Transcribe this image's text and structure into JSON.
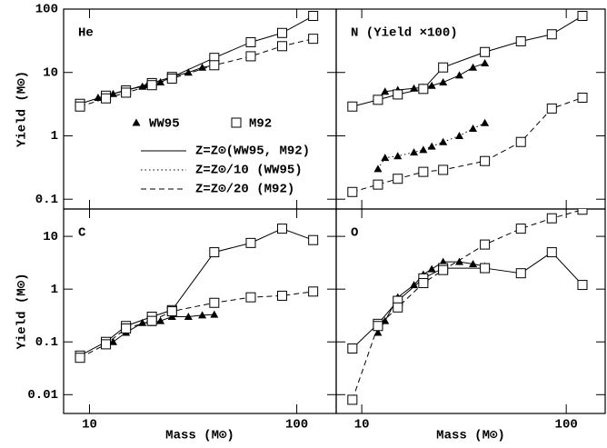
{
  "chart_data": [
    {
      "type": "line",
      "panel_label": "He",
      "y_label": "Yield (M⊙)",
      "log_x": true,
      "log_y": true,
      "xlim": [
        7.5,
        155
      ],
      "ylim": [
        0.07,
        100
      ],
      "xticks": [
        10,
        100
      ],
      "yticks": [
        0.1,
        1,
        10,
        100
      ],
      "xtick_labels": false,
      "ytick_labels": true,
      "legend": [
        {
          "label": "WW95",
          "marker": "triangle"
        },
        {
          "label": "M92",
          "marker": "square"
        },
        {
          "label": "Z=Z⊙(WW95, M92)",
          "dash": "solid"
        },
        {
          "label": "Z=Z⊙/10 (WW95)",
          "dash": "dotted"
        },
        {
          "label": "Z=Z⊙/20 (M92)",
          "dash": "dashed"
        }
      ],
      "series": [
        {
          "color": "#000000",
          "marker": "triangle",
          "dash": "solid",
          "x": [
            11,
            12,
            13,
            15,
            18,
            19,
            20,
            22,
            25,
            30,
            35,
            40
          ],
          "values": [
            4.0,
            4.2,
            4.6,
            5.3,
            6.0,
            6.3,
            6.7,
            7.0,
            8.5,
            10,
            12,
            13
          ]
        },
        {
          "color": "#000000",
          "marker": "square",
          "dash": "solid",
          "x": [
            9,
            12,
            15,
            20,
            25,
            40,
            60,
            85,
            120
          ],
          "values": [
            3.2,
            4.3,
            5.2,
            6.8,
            8.5,
            17,
            30,
            42,
            78
          ]
        },
        {
          "color": "#000000",
          "marker": "square",
          "dash": "dashed",
          "x": [
            9,
            12,
            15,
            20,
            25,
            40,
            60,
            85,
            120
          ],
          "values": [
            2.9,
            3.9,
            4.8,
            6.3,
            8,
            13,
            18,
            26,
            34
          ]
        }
      ]
    },
    {
      "type": "line",
      "panel_label": "N (Yield ×100)",
      "log_x": true,
      "log_y": true,
      "xlim": [
        7.5,
        155
      ],
      "ylim": [
        0.07,
        100
      ],
      "xticks": [
        10,
        100
      ],
      "yticks": [
        0.1,
        1,
        10,
        100
      ],
      "xtick_labels": false,
      "ytick_labels": false,
      "series": [
        {
          "color": "#000000",
          "marker": "triangle",
          "dash": "solid",
          "x": [
            12,
            13,
            15,
            18,
            20,
            22,
            25,
            30,
            35,
            40
          ],
          "values": [
            3.8,
            5,
            5.3,
            5.6,
            5.8,
            6.2,
            7,
            9,
            12,
            14
          ]
        },
        {
          "color": "#000000",
          "marker": "triangle",
          "dash": "dotted",
          "x": [
            12,
            13,
            15,
            18,
            20,
            22,
            25,
            30,
            35,
            40
          ],
          "values": [
            0.3,
            0.45,
            0.48,
            0.55,
            0.6,
            0.68,
            0.8,
            1.0,
            1.3,
            1.6
          ]
        },
        {
          "color": "#000000",
          "marker": "square",
          "dash": "solid",
          "x": [
            9,
            12,
            15,
            20,
            25,
            40,
            60,
            85,
            120
          ],
          "values": [
            2.9,
            3.7,
            4.5,
            5.5,
            12,
            21,
            31,
            40,
            78
          ]
        },
        {
          "color": "#000000",
          "marker": "square",
          "dash": "dashed",
          "x": [
            9,
            12,
            15,
            20,
            25,
            40,
            60,
            85,
            120
          ],
          "values": [
            0.13,
            0.17,
            0.21,
            0.27,
            0.29,
            0.4,
            0.8,
            2.7,
            4
          ]
        }
      ]
    },
    {
      "type": "line",
      "panel_label": "C",
      "y_label": "Yield (M⊙)",
      "x_label": "Mass (M⊙)",
      "log_x": true,
      "log_y": true,
      "xlim": [
        7.5,
        155
      ],
      "ylim": [
        0.0044,
        33
      ],
      "xticks": [
        10,
        100
      ],
      "yticks": [
        0.01,
        0.1,
        1,
        10
      ],
      "xtick_labels": true,
      "ytick_labels": true,
      "series": [
        {
          "color": "#000000",
          "marker": "triangle",
          "dash": "solid",
          "x": [
            12,
            13,
            15,
            18,
            20,
            22,
            25,
            30,
            35,
            40
          ],
          "values": [
            0.085,
            0.1,
            0.15,
            0.23,
            0.23,
            0.25,
            0.3,
            0.3,
            0.32,
            0.33
          ]
        },
        {
          "color": "#000000",
          "marker": "square",
          "dash": "solid",
          "x": [
            9,
            12,
            15,
            20,
            25,
            40,
            60,
            85,
            120
          ],
          "values": [
            0.055,
            0.1,
            0.2,
            0.3,
            0.4,
            5,
            7.5,
            14,
            8.5
          ]
        },
        {
          "color": "#000000",
          "marker": "square",
          "dash": "dashed",
          "x": [
            9,
            12,
            15,
            20,
            25,
            40,
            60,
            85,
            120
          ],
          "values": [
            0.05,
            0.09,
            0.18,
            0.25,
            0.38,
            0.55,
            0.7,
            0.75,
            0.9
          ]
        }
      ]
    },
    {
      "type": "line",
      "panel_label": "O",
      "x_label": "Mass (M⊙)",
      "log_x": true,
      "log_y": true,
      "xlim": [
        7.5,
        155
      ],
      "ylim": [
        0.0044,
        33
      ],
      "xticks": [
        10,
        100
      ],
      "yticks": [
        0.01,
        0.1,
        1,
        10
      ],
      "xtick_labels": true,
      "ytick_labels": false,
      "series": [
        {
          "color": "#000000",
          "marker": "triangle",
          "dash": "solid",
          "x": [
            12,
            13,
            15,
            18,
            20,
            22,
            25,
            30,
            35,
            40
          ],
          "values": [
            0.15,
            0.25,
            0.7,
            1.2,
            1.9,
            2.4,
            3.3,
            3.3,
            3,
            2.7
          ]
        },
        {
          "color": "#000000",
          "marker": "square",
          "dash": "solid",
          "x": [
            9,
            12,
            15,
            20,
            25,
            40,
            60,
            85,
            120
          ],
          "values": [
            0.075,
            0.22,
            0.6,
            1.6,
            2.5,
            2.5,
            2,
            5,
            1.2
          ]
        },
        {
          "color": "#000000",
          "marker": "square",
          "dash": "dashed",
          "x": [
            9,
            12,
            15,
            20,
            25,
            40,
            60,
            85,
            120
          ],
          "values": [
            0.008,
            0.2,
            0.45,
            1.3,
            2.3,
            7,
            14,
            22,
            32
          ]
        }
      ]
    }
  ]
}
